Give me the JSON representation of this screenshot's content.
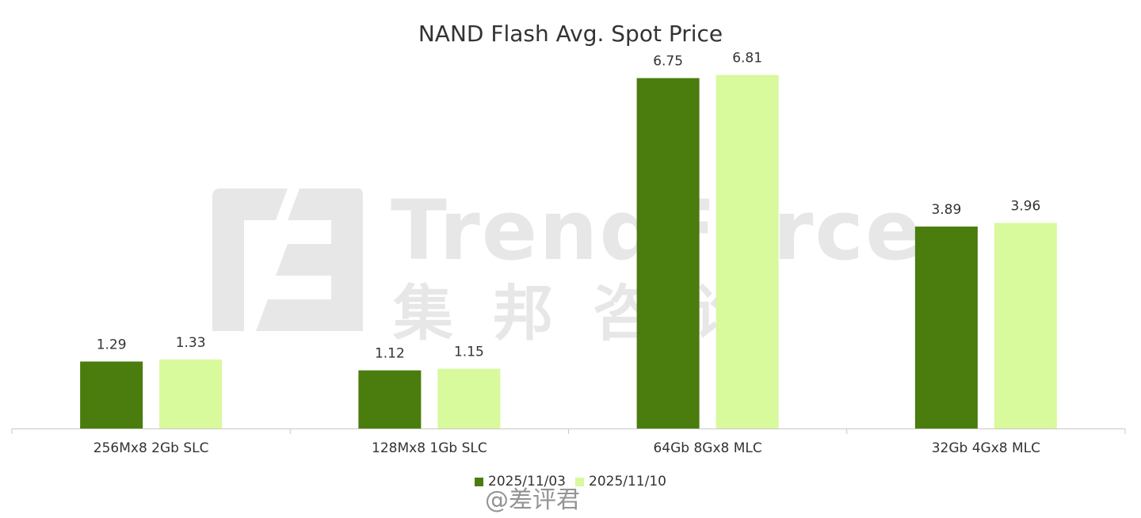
{
  "chart_data": {
    "type": "bar",
    "title": "NAND Flash Avg. Spot Price",
    "categories": [
      "256Mx8 2Gb SLC",
      "128Mx8 1Gb SLC",
      "64Gb 8Gx8 MLC",
      "32Gb 4Gx8 MLC"
    ],
    "series": [
      {
        "name": "2025/11/03",
        "color": "#4a7c0e",
        "values": [
          1.29,
          1.12,
          6.75,
          3.89
        ]
      },
      {
        "name": "2025/11/10",
        "color": "#d8f99c",
        "values": [
          1.33,
          1.15,
          6.81,
          3.96
        ]
      }
    ],
    "ylim": [
      0,
      7.4
    ],
    "grid": false,
    "legend_position": "bottom",
    "data_labels": true
  },
  "watermark": {
    "text": "TrendForce",
    "text_cn": "集邦咨询"
  },
  "overlay_mark": {
    "text": "@差评君"
  }
}
